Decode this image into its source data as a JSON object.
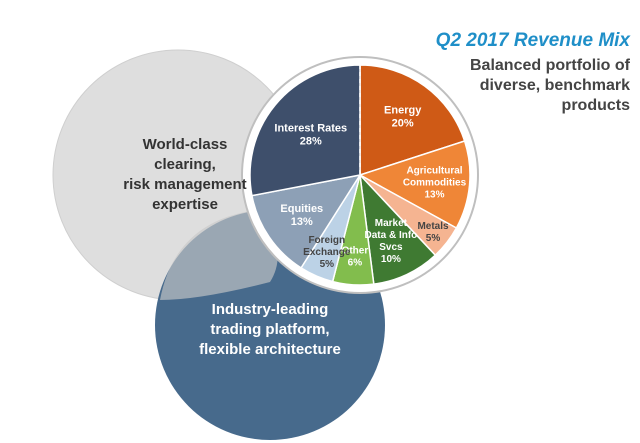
{
  "title": "Q2 2017 Revenue Mix",
  "subtitle": [
    "Balanced portfolio of",
    "diverse, benchmark",
    "products"
  ],
  "venn": {
    "clearing": {
      "lines": [
        "World-class",
        "clearing,",
        "risk management",
        "expertise"
      ],
      "color": "#dedede"
    },
    "trading": {
      "lines": [
        "Industry-leading",
        "trading platform,",
        "flexible architecture"
      ],
      "color": "#476a8c"
    }
  },
  "chart_data": {
    "type": "pie",
    "unit": "%",
    "slices": [
      {
        "label": [
          "Energy"
        ],
        "value": 20,
        "value_label": "20%",
        "color": "#cf5a16",
        "text_color": "#ffffff"
      },
      {
        "label": [
          "Agricultural",
          "Commodities"
        ],
        "value": 13,
        "value_label": "13%",
        "color": "#ef8637",
        "text_color": "#ffffff"
      },
      {
        "label": [
          "Metals"
        ],
        "value": 5,
        "value_label": "5%",
        "color": "#f5b491",
        "text_color": "#444444"
      },
      {
        "label": [
          "Market",
          "Data & Info",
          "Svcs"
        ],
        "value": 10,
        "value_label": "10%",
        "color": "#3f7a32",
        "text_color": "#ffffff"
      },
      {
        "label": [
          "Other"
        ],
        "value": 6,
        "value_label": "6%",
        "color": "#82bd4d",
        "text_color": "#ffffff"
      },
      {
        "label": [
          "Foreign",
          "Exchange"
        ],
        "value": 5,
        "value_label": "5%",
        "color": "#bcd2e6",
        "text_color": "#444444"
      },
      {
        "label": [
          "Equities"
        ],
        "value": 13,
        "value_label": "13%",
        "color": "#8da0b6",
        "text_color": "#ffffff"
      },
      {
        "label": [
          "Interest Rates"
        ],
        "value": 28,
        "value_label": "28%",
        "color": "#3e4f6b",
        "text_color": "#ffffff"
      }
    ]
  }
}
